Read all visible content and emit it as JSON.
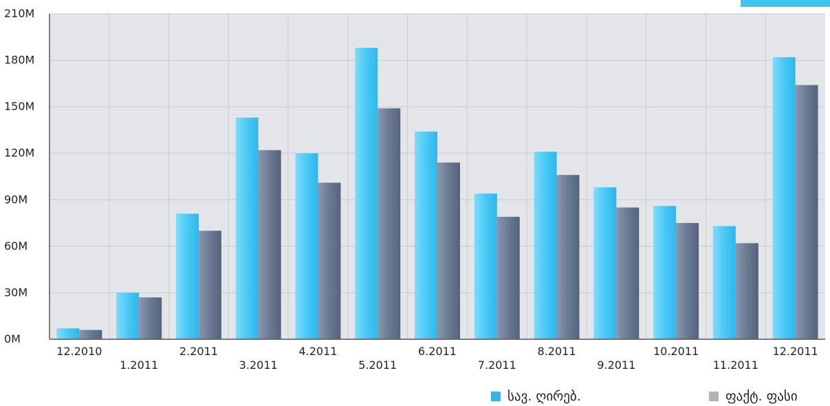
{
  "chart_data": {
    "type": "bar",
    "categories": [
      "12.2010",
      "1.2011",
      "2.2011",
      "3.2011",
      "4.2011",
      "5.2011",
      "6.2011",
      "7.2011",
      "8.2011",
      "9.2011",
      "10.2011",
      "11.2011",
      "12.2011"
    ],
    "series": [
      {
        "name": "სავ. ღირებ.",
        "color": "#45c8f5",
        "values": [
          7,
          30,
          81,
          143,
          120,
          188,
          134,
          94,
          121,
          98,
          86,
          73,
          182
        ]
      },
      {
        "name": "ფაქტ. ფასი",
        "color": "#6b7a93",
        "values": [
          6,
          27,
          70,
          122,
          101,
          149,
          114,
          79,
          106,
          85,
          75,
          62,
          164
        ]
      }
    ],
    "yticks": [
      "0M",
      "30M",
      "60M",
      "90M",
      "120M",
      "150M",
      "180M",
      "210M"
    ],
    "ylim": [
      0,
      210
    ],
    "grid": true,
    "legend_position": "bottom-right"
  },
  "legend": {
    "items": [
      {
        "label": "სავ. ღირებ.",
        "color": "#35b4ea"
      },
      {
        "label": "ფაქტ. ფასი",
        "color": "#b3b3b3"
      }
    ]
  }
}
